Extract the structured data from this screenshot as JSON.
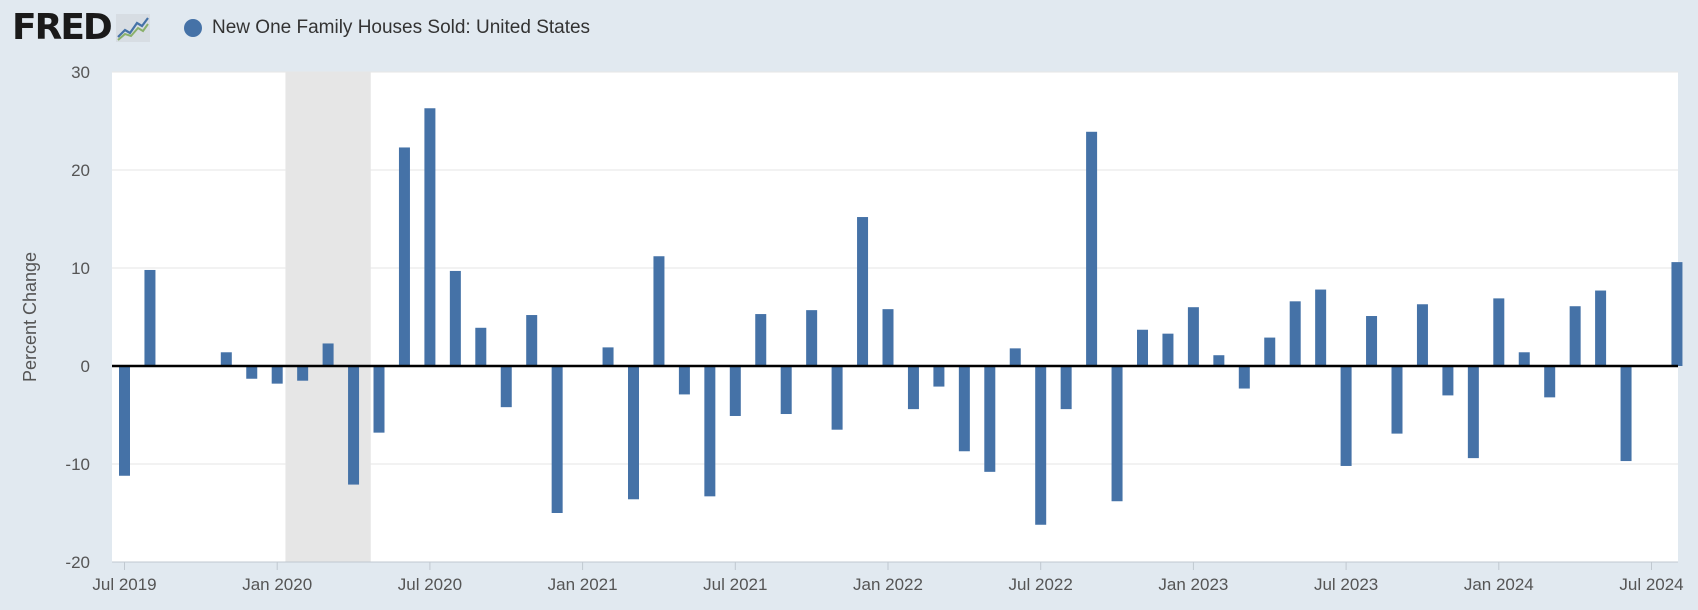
{
  "header": {
    "logo_text": "FRED",
    "series_title": "New One Family Houses Sold: United States"
  },
  "colors": {
    "bar": "#4572a7",
    "background": "#e1e9f0",
    "plot_background": "#ffffff",
    "recession": "#e6e6e6",
    "zero_line": "#000000"
  },
  "icons": {
    "logo_mark": "line-chart-icon",
    "legend_marker": "circle-icon"
  },
  "chart_data": {
    "type": "bar",
    "title": "New One Family Houses Sold: United States",
    "ylabel": "Percent Change",
    "xlabel": "",
    "ylim": [
      -20,
      30
    ],
    "yticks": [
      -20,
      -10,
      0,
      10,
      20,
      30
    ],
    "ytick_labels": [
      "-20",
      "-10",
      "0",
      "10",
      "20",
      "30"
    ],
    "grid": true,
    "start": "2019-07",
    "xtick_labels": [
      "Jul 2019",
      "Jan 2020",
      "Jul 2020",
      "Jan 2021",
      "Jul 2021",
      "Jan 2022",
      "Jul 2022",
      "Jan 2023",
      "Jul 2023",
      "Jan 2024",
      "Jul 2024"
    ],
    "recession": {
      "from": "2020-02",
      "to": "2020-04"
    },
    "series": [
      {
        "name": "New One Family Houses Sold: United States",
        "values": [
          -11.2,
          9.8,
          0.0,
          0.0,
          1.4,
          -1.3,
          -1.8,
          -1.5,
          2.3,
          -12.1,
          -6.8,
          22.3,
          26.3,
          9.7,
          3.9,
          -4.2,
          5.2,
          -15.0,
          0.0,
          1.9,
          -13.6,
          11.2,
          -2.9,
          -13.3,
          -5.1,
          5.3,
          -4.9,
          5.7,
          -6.5,
          15.2,
          5.8,
          -4.4,
          -2.1,
          -8.7,
          -10.8,
          1.8,
          -16.2,
          -4.4,
          23.9,
          -13.8,
          3.7,
          3.3,
          6.0,
          1.1,
          -2.3,
          2.9,
          6.6,
          7.8,
          -10.2,
          5.1,
          -6.9,
          6.3,
          -3.0,
          -9.4,
          6.9,
          1.4,
          -3.2,
          6.1,
          7.7,
          -9.7,
          0.0,
          10.6
        ]
      }
    ]
  }
}
